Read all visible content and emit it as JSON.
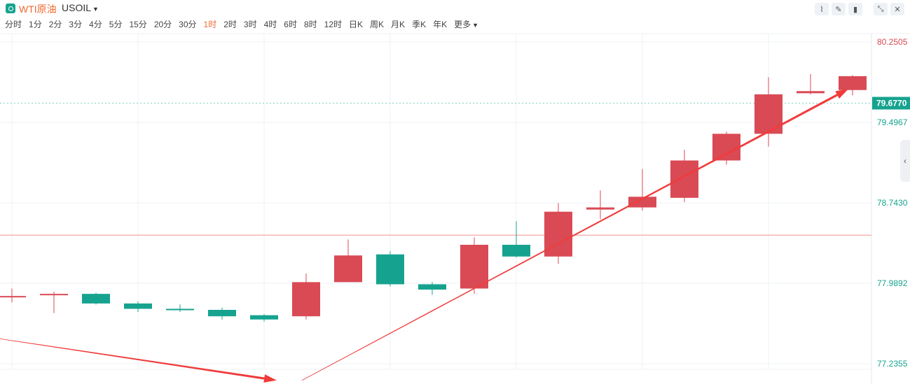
{
  "header": {
    "symbol_name": "WTI原油",
    "symbol_code": "USOIL",
    "dropdown_icon": "caret-down-icon",
    "tools": [
      {
        "name": "line-tool-icon",
        "glyph": "⌇"
      },
      {
        "name": "pencil-icon",
        "glyph": "✎"
      },
      {
        "name": "candles-icon",
        "glyph": "▮"
      },
      {
        "name": "collapse-icon",
        "glyph": "⤡"
      },
      {
        "name": "close-icon",
        "glyph": "✕"
      }
    ]
  },
  "intervals": [
    "分时",
    "1分",
    "2分",
    "3分",
    "4分",
    "5分",
    "15分",
    "20分",
    "30分",
    "1时",
    "2时",
    "3时",
    "4时",
    "6时",
    "8时",
    "12时",
    "日K",
    "周K",
    "月K",
    "季K",
    "年K",
    "更多"
  ],
  "active_interval": "1时",
  "colors": {
    "up": "#d94a55",
    "down": "#15a38f",
    "arrow": "#f03c3c",
    "grid": "#eef1f4",
    "ref_line": "#f4a7a7",
    "price_line": "#7fd3c6",
    "current_price_bg": "#15a38f"
  },
  "chart_data": {
    "type": "candlestick",
    "yaxis": {
      "range": [
        77.2355,
        80.2505
      ],
      "ticks": [
        {
          "label": "80.2505",
          "value": 80.2505,
          "color": "#d94a55"
        },
        {
          "label": "79.4967",
          "value": 79.4967,
          "color": "#15a38f"
        },
        {
          "label": "78.7430",
          "value": 78.743,
          "color": "#15a38f"
        },
        {
          "label": "77.9892",
          "value": 77.9892,
          "color": "#15a38f"
        },
        {
          "label": "77.2355",
          "value": 77.2355,
          "color": "#15a38f"
        }
      ]
    },
    "current_price": {
      "label": "79.6770",
      "value": 79.677
    },
    "reference_line": 78.44,
    "candles": [
      {
        "o": 77.86,
        "c": 77.87,
        "h": 77.94,
        "l": 77.81
      },
      {
        "o": 77.88,
        "c": 77.89,
        "h": 77.91,
        "l": 77.71
      },
      {
        "o": 77.89,
        "c": 77.8,
        "h": 77.9,
        "l": 77.79
      },
      {
        "o": 77.8,
        "c": 77.75,
        "h": 77.82,
        "l": 77.72
      },
      {
        "o": 77.75,
        "c": 77.74,
        "h": 77.79,
        "l": 77.72
      },
      {
        "o": 77.74,
        "c": 77.68,
        "h": 77.76,
        "l": 77.65
      },
      {
        "o": 77.69,
        "c": 77.65,
        "h": 77.7,
        "l": 77.63
      },
      {
        "o": 77.68,
        "c": 78.0,
        "h": 78.08,
        "l": 77.65
      },
      {
        "o": 78.0,
        "c": 78.25,
        "h": 78.4,
        "l": 78.0
      },
      {
        "o": 78.26,
        "c": 77.98,
        "h": 78.29,
        "l": 77.96
      },
      {
        "o": 77.98,
        "c": 77.93,
        "h": 78.0,
        "l": 77.88
      },
      {
        "o": 77.94,
        "c": 78.35,
        "h": 78.42,
        "l": 77.89
      },
      {
        "o": 78.35,
        "c": 78.24,
        "h": 78.57,
        "l": 78.23
      },
      {
        "o": 78.24,
        "c": 78.66,
        "h": 78.74,
        "l": 78.17
      },
      {
        "o": 78.68,
        "c": 78.7,
        "h": 78.86,
        "l": 78.59
      },
      {
        "o": 78.7,
        "c": 78.8,
        "h": 79.06,
        "l": 78.67
      },
      {
        "o": 78.79,
        "c": 79.14,
        "h": 79.24,
        "l": 78.75
      },
      {
        "o": 79.14,
        "c": 79.39,
        "h": 79.41,
        "l": 79.1
      },
      {
        "o": 79.39,
        "c": 79.76,
        "h": 79.92,
        "l": 79.27
      },
      {
        "o": 79.77,
        "c": 79.79,
        "h": 79.95,
        "l": 79.76
      },
      {
        "o": 79.8,
        "c": 79.93,
        "h": 79.94,
        "l": 79.75
      }
    ],
    "arrows": [
      {
        "from": [
          -0.3,
          77.47
        ],
        "to": [
          6.3,
          77.08
        ]
      },
      {
        "from": [
          6.9,
          77.08
        ],
        "to": [
          19.9,
          79.81
        ]
      }
    ]
  }
}
